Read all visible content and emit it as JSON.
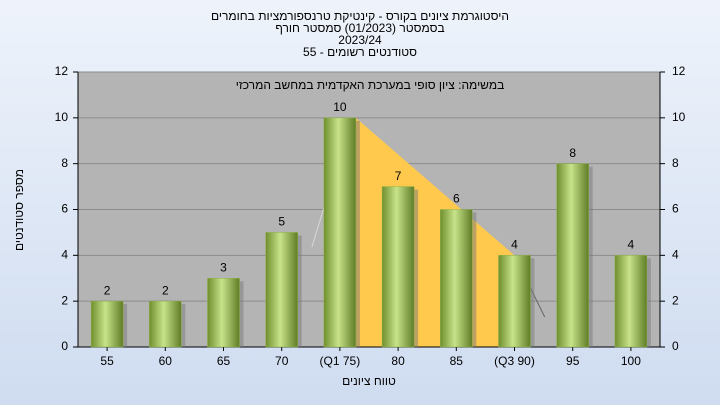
{
  "chart_data": {
    "type": "bar",
    "title": "היסטוגרמת ציונים בקורס - קינטיקת טרנספורמציות בחומרים",
    "subtitle": [
      "בסמסטר  (01/2023)  סמסטר חורף",
      "2023/24",
      "סטודנטים רשומים - 55"
    ],
    "annotation": "במשימה: ציון סופי במערכת האקדמית במחשב המרכזי",
    "x_label": "טווח ציונים",
    "y_label": "מספר סטודנטים",
    "categories": [
      "55",
      "60",
      "65",
      "70",
      "(Q1 75)",
      "80",
      "85",
      "(Q3 90)",
      "95",
      "100"
    ],
    "values": [
      2,
      2,
      3,
      5,
      10,
      7,
      6,
      4,
      8,
      4
    ],
    "color": "#8db04a",
    "ylim": [
      0,
      12
    ],
    "yticks": [
      0,
      2,
      4,
      6,
      8,
      10,
      12
    ],
    "y2lim": [
      0,
      12
    ],
    "y2ticks": [
      0,
      2,
      4,
      6,
      8,
      10,
      12
    ],
    "grid": true
  }
}
